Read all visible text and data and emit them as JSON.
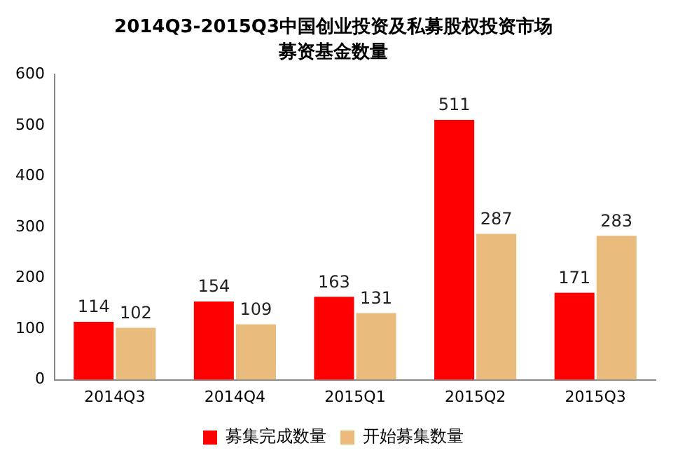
{
  "chart_data": {
    "type": "bar",
    "title": "2014Q3-2015Q3中国创业投资及私募股权投资市场",
    "subtitle": "募资基金数量",
    "categories": [
      "2014Q3",
      "2014Q4",
      "2015Q1",
      "2015Q2",
      "2015Q3"
    ],
    "series": [
      {
        "name": "募集完成数量",
        "color": "#ff0000",
        "values": [
          114,
          154,
          163,
          511,
          171
        ]
      },
      {
        "name": "开始募集数量",
        "color": "#e9bb7c",
        "values": [
          102,
          109,
          131,
          287,
          283
        ]
      }
    ],
    "ylim": [
      0,
      600
    ],
    "yticks": [
      0,
      100,
      200,
      300,
      400,
      500,
      600
    ],
    "grid": false,
    "legend": "bottom",
    "data_labels": true
  }
}
